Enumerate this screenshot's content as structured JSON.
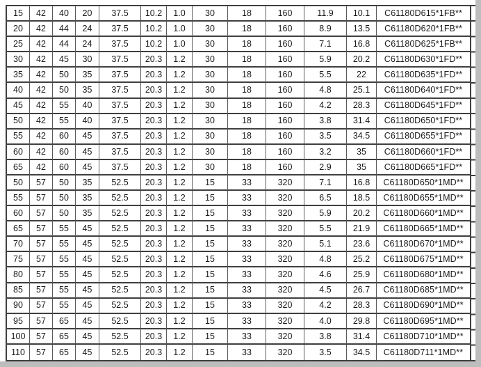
{
  "table": {
    "rows": [
      [
        "15",
        "42",
        "40",
        "20",
        "37.5",
        "10.2",
        "1.0",
        "30",
        "18",
        "160",
        "11.9",
        "10.1",
        "C61180D615*1FB**"
      ],
      [
        "20",
        "42",
        "44",
        "24",
        "37.5",
        "10.2",
        "1.0",
        "30",
        "18",
        "160",
        "8.9",
        "13.5",
        "C61180D620*1FB**"
      ],
      [
        "25",
        "42",
        "44",
        "24",
        "37.5",
        "10.2",
        "1.0",
        "30",
        "18",
        "160",
        "7.1",
        "16.8",
        "C61180D625*1FB**"
      ],
      [
        "30",
        "42",
        "45",
        "30",
        "37.5",
        "20.3",
        "1.2",
        "30",
        "18",
        "160",
        "5.9",
        "20.2",
        "C61180D630*1FD**"
      ],
      [
        "35",
        "42",
        "50",
        "35",
        "37.5",
        "20.3",
        "1.2",
        "30",
        "18",
        "160",
        "5.5",
        "22",
        "C61180D635*1FD**"
      ],
      [
        "40",
        "42",
        "50",
        "35",
        "37.5",
        "20.3",
        "1.2",
        "30",
        "18",
        "160",
        "4.8",
        "25.1",
        "C61180D640*1FD**"
      ],
      [
        "45",
        "42",
        "55",
        "40",
        "37.5",
        "20.3",
        "1.2",
        "30",
        "18",
        "160",
        "4.2",
        "28.3",
        "C61180D645*1FD**"
      ],
      [
        "50",
        "42",
        "55",
        "40",
        "37.5",
        "20.3",
        "1.2",
        "30",
        "18",
        "160",
        "3.8",
        "31.4",
        "C61180D650*1FD**"
      ],
      [
        "55",
        "42",
        "60",
        "45",
        "37.5",
        "20.3",
        "1.2",
        "30",
        "18",
        "160",
        "3.5",
        "34.5",
        "C61180D655*1FD**"
      ],
      [
        "60",
        "42",
        "60",
        "45",
        "37.5",
        "20.3",
        "1.2",
        "30",
        "18",
        "160",
        "3.2",
        "35",
        "C61180D660*1FD**"
      ],
      [
        "65",
        "42",
        "60",
        "45",
        "37.5",
        "20.3",
        "1.2",
        "30",
        "18",
        "160",
        "2.9",
        "35",
        "C61180D665*1FD**"
      ],
      [
        "50",
        "57",
        "50",
        "35",
        "52.5",
        "20.3",
        "1.2",
        "15",
        "33",
        "320",
        "7.1",
        "16.8",
        "C61180D650*1MD**"
      ],
      [
        "55",
        "57",
        "50",
        "35",
        "52.5",
        "20.3",
        "1.2",
        "15",
        "33",
        "320",
        "6.5",
        "18.5",
        "C61180D655*1MD**"
      ],
      [
        "60",
        "57",
        "50",
        "35",
        "52.5",
        "20.3",
        "1.2",
        "15",
        "33",
        "320",
        "5.9",
        "20.2",
        "C61180D660*1MD**"
      ],
      [
        "65",
        "57",
        "55",
        "45",
        "52.5",
        "20.3",
        "1.2",
        "15",
        "33",
        "320",
        "5.5",
        "21.9",
        "C61180D665*1MD**"
      ],
      [
        "70",
        "57",
        "55",
        "45",
        "52.5",
        "20.3",
        "1.2",
        "15",
        "33",
        "320",
        "5.1",
        "23.6",
        "C61180D670*1MD**"
      ],
      [
        "75",
        "57",
        "55",
        "45",
        "52.5",
        "20.3",
        "1.2",
        "15",
        "33",
        "320",
        "4.8",
        "25.2",
        "C61180D675*1MD**"
      ],
      [
        "80",
        "57",
        "55",
        "45",
        "52.5",
        "20.3",
        "1.2",
        "15",
        "33",
        "320",
        "4.6",
        "25.9",
        "C61180D680*1MD**"
      ],
      [
        "85",
        "57",
        "55",
        "45",
        "52.5",
        "20.3",
        "1.2",
        "15",
        "33",
        "320",
        "4.5",
        "26.7",
        "C61180D685*1MD**"
      ],
      [
        "90",
        "57",
        "55",
        "45",
        "52.5",
        "20.3",
        "1.2",
        "15",
        "33",
        "320",
        "4.2",
        "28.3",
        "C61180D690*1MD**"
      ],
      [
        "95",
        "57",
        "65",
        "45",
        "52.5",
        "20.3",
        "1.2",
        "15",
        "33",
        "320",
        "4.0",
        "29.8",
        "C61180D695*1MD**"
      ],
      [
        "100",
        "57",
        "65",
        "45",
        "52.5",
        "20.3",
        "1.2",
        "15",
        "33",
        "320",
        "3.8",
        "31.4",
        "C61180D710*1MD**"
      ],
      [
        "110",
        "57",
        "65",
        "45",
        "52.5",
        "20.3",
        "1.2",
        "15",
        "33",
        "320",
        "3.5",
        "34.5",
        "C61180D711*1MD**"
      ]
    ]
  },
  "colors": {
    "border_dark": "#3f3f3f",
    "grid_line": "#5a5a5a",
    "text": "#1a1a1a",
    "edge_shadow": "#bdbdbd",
    "background": "#ffffff"
  }
}
